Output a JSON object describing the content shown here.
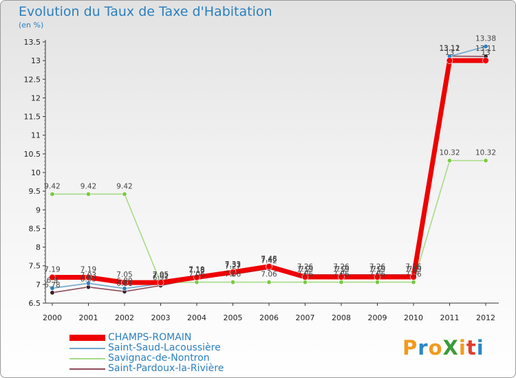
{
  "header": {
    "title": "Evolution du Taux de Taxe d'Habitation",
    "subtitle": "(en %)"
  },
  "logo": {
    "text": "ProXiti",
    "letter_colors": [
      "#f39a1c",
      "#2a88c8",
      "#f39a1c",
      "#3b9b3b",
      "#f39a1c",
      "#e23d2b",
      "#2a88c8"
    ]
  },
  "chart_data": {
    "type": "line",
    "x": [
      "2000",
      "2001",
      "2002",
      "2003",
      "2004",
      "2005",
      "2006",
      "2007",
      "2008",
      "2009",
      "2010",
      "2011",
      "2012"
    ],
    "yticks": [
      "6.5",
      "7",
      "7.5",
      "8",
      "8.5",
      "9",
      "9.5",
      "10",
      "10.5",
      "11",
      "11.5",
      "12",
      "12.5",
      "13",
      "13.5"
    ],
    "ylim": [
      6.5,
      13.5
    ],
    "grid": false,
    "legend_position": "bottom-left",
    "series": [
      {
        "name": "CHAMPS-ROMAIN",
        "color": "#ee0000",
        "marker": "#ee0000",
        "values": [
          7.19,
          7.19,
          7.05,
          7.05,
          7.19,
          7.33,
          7.48,
          7.2,
          7.2,
          7.2,
          7.2,
          13.0,
          13.0
        ],
        "labels": [
          "7.19",
          "7.19",
          "7.05",
          "7.05",
          "7.19",
          "7.33",
          "7.48",
          "7.2",
          "7.2",
          "7.2",
          "7.2",
          "13",
          "13"
        ]
      },
      {
        "name": "Saint-Saud-Lacoussière",
        "color": "#6ea6cc",
        "marker": "#2f7fc0",
        "values": [
          6.9,
          7.03,
          6.89,
          7.02,
          7.18,
          7.31,
          7.46,
          7.19,
          7.19,
          7.19,
          7.19,
          13.11,
          13.38
        ],
        "labels": [
          "6.9",
          "7.03",
          "6.89",
          "7.02",
          "7.18",
          "7.31",
          "7.46",
          "7.19",
          "7.19",
          "7.19",
          "7.19",
          "13.11",
          "13.38"
        ]
      },
      {
        "name": "Savignac-de-Nontron",
        "color": "#a6dc86",
        "marker": "#7ac943",
        "values": [
          9.42,
          9.42,
          9.42,
          7.05,
          7.06,
          7.06,
          7.06,
          7.06,
          7.06,
          7.06,
          7.06,
          10.32,
          10.32
        ],
        "labels": [
          "9.42",
          "9.42",
          "9.42",
          "7.05",
          "7.06",
          "7.06",
          "7.06",
          "7.06",
          "7.06",
          "7.06",
          "7.06",
          "10.32",
          "10.32"
        ]
      },
      {
        "name": "Saint-Pardoux-la-Rivière",
        "color": "#8e4a5a",
        "marker": "#3a1e2a",
        "values": [
          6.78,
          6.93,
          6.81,
          6.97,
          7.16,
          7.27,
          7.42,
          7.26,
          7.26,
          7.26,
          7.26,
          13.12,
          13.11
        ],
        "labels": [
          "6.78",
          "6.93",
          "6.81",
          "6.97",
          "7.16",
          "7.27",
          "7.42",
          "7.26",
          "7.26",
          "7.26",
          "7.26",
          "13.12",
          "13.11"
        ]
      }
    ]
  }
}
